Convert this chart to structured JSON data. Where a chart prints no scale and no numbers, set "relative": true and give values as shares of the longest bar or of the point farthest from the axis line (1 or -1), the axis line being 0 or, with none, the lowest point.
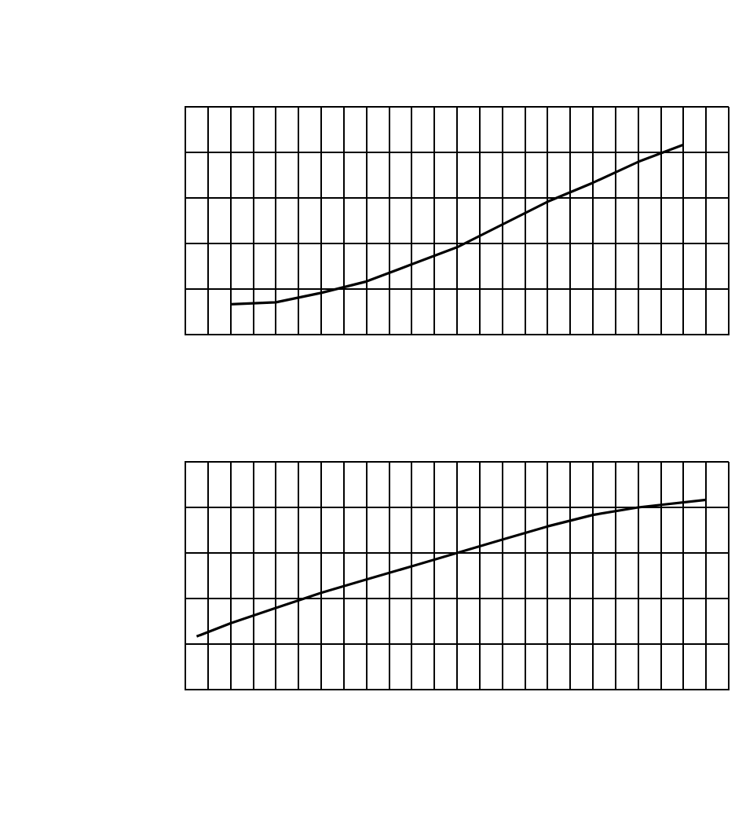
{
  "chart_data": [
    {
      "type": "line",
      "relative": true,
      "grid": true,
      "categories": [
        null,
        null,
        null,
        null,
        null,
        null,
        null,
        null,
        null,
        null,
        null,
        null,
        null,
        null,
        null,
        null,
        null,
        null,
        null,
        null,
        null,
        null,
        null,
        null,
        null,
        null,
        null,
        null,
        null,
        null,
        null,
        null,
        null,
        null,
        null,
        null,
        null,
        null,
        null,
        null,
        null,
        null,
        null,
        null,
        null,
        null,
        null,
        null,
        null
      ],
      "series": [
        {
          "color": "#000000",
          "values": [
            null,
            null,
            null,
            null,
            0.16,
            null,
            null,
            null,
            0.17,
            null,
            null,
            null,
            0.22,
            null,
            null,
            null,
            0.28,
            null,
            null,
            null,
            0.37,
            null,
            null,
            null,
            0.46,
            null,
            null,
            null,
            0.58,
            null,
            null,
            null,
            0.7,
            null,
            null,
            null,
            0.8,
            null,
            null,
            null,
            0.91,
            null,
            null,
            null,
            1,
            null,
            null,
            null,
            null
          ]
        }
      ]
    },
    {
      "type": "line",
      "relative": true,
      "grid": true,
      "categories": [
        null,
        null,
        null,
        null,
        null,
        null,
        null,
        null,
        null,
        null,
        null,
        null,
        null,
        null,
        null,
        null,
        null,
        null,
        null,
        null,
        null,
        null,
        null,
        null,
        null,
        null,
        null,
        null,
        null,
        null,
        null,
        null,
        null,
        null,
        null,
        null,
        null,
        null,
        null,
        null,
        null,
        null,
        null,
        null,
        null,
        null,
        null,
        null,
        null
      ],
      "series": [
        {
          "color": "#000000",
          "values": [
            null,
            0.28,
            null,
            null,
            0.35,
            null,
            null,
            null,
            0.43,
            null,
            null,
            null,
            0.51,
            null,
            null,
            null,
            0.58,
            null,
            null,
            null,
            0.65,
            null,
            null,
            null,
            0.72,
            null,
            null,
            null,
            0.79,
            null,
            null,
            null,
            0.86,
            null,
            null,
            null,
            0.92,
            null,
            null,
            null,
            0.96,
            null,
            null,
            null,
            null,
            null,
            1,
            null,
            null
          ]
        }
      ]
    }
  ]
}
